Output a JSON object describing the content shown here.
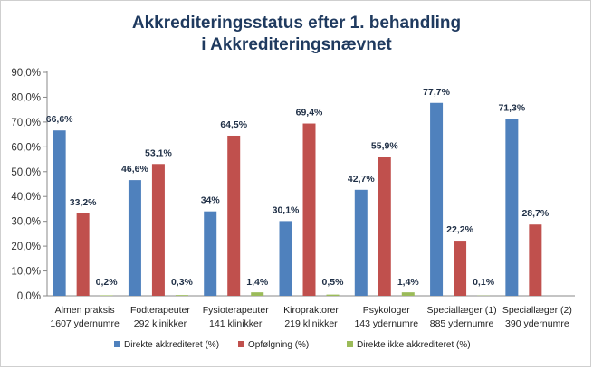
{
  "chart_data": {
    "type": "bar",
    "title": [
      "Akkrediteringsstatus efter 1. behandling",
      "i Akkrediteringsnævnet"
    ],
    "categories": [
      [
        "Almen praksis",
        "1607 ydernumre"
      ],
      [
        "Fodterapeuter",
        "292 klinikker"
      ],
      [
        "Fysioterapeuter",
        "141 klinikker"
      ],
      [
        "Kiropraktorer",
        "219 klinikker"
      ],
      [
        "Psykologer",
        "143 ydernumre"
      ],
      [
        "Speciallæger (1)",
        "885 ydernumre"
      ],
      [
        "Speciallæger (2)",
        "390 ydernumre"
      ]
    ],
    "series": [
      {
        "name": "Direkte akkrediteret  (%)",
        "color": "#4f81bd",
        "values": [
          66.6,
          46.6,
          34,
          30.1,
          42.7,
          77.7,
          71.3
        ],
        "labels": [
          "66,6%",
          "46,6%",
          "34%",
          "30,1%",
          "42,7%",
          "77,7%",
          "71,3%"
        ]
      },
      {
        "name": "Opfølgning (%)",
        "color": "#c0504d",
        "values": [
          33.2,
          53.1,
          64.5,
          69.4,
          55.9,
          22.2,
          28.7
        ],
        "labels": [
          "33,2%",
          "53,1%",
          "64,5%",
          "69,4%",
          "55,9%",
          "22,2%",
          "28,7%"
        ]
      },
      {
        "name": "Direkte ikke akkrediteret (%)",
        "color": "#9bbb59",
        "values": [
          0.2,
          0.3,
          1.4,
          0.5,
          1.4,
          0.1,
          null
        ],
        "labels": [
          "0,2%",
          "0,3%",
          "1,4%",
          "0,5%",
          "1,4%",
          "0,1%",
          null
        ]
      }
    ],
    "yticks": [
      "0,0%",
      "10,0%",
      "20,0%",
      "30,0%",
      "40,0%",
      "50,0%",
      "60,0%",
      "70,0%",
      "80,0%",
      "90,0%"
    ],
    "ylim": [
      0,
      90
    ],
    "grid": false,
    "legend": "bottom"
  }
}
